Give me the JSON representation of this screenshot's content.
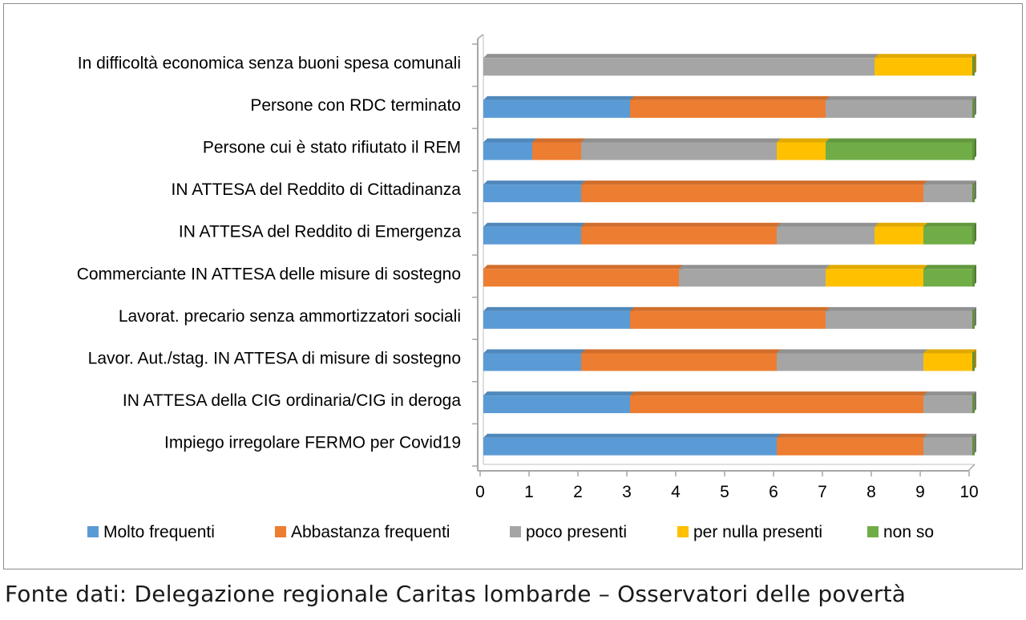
{
  "chart_data": {
    "type": "bar",
    "orientation": "horizontal",
    "stacked": true,
    "categories": [
      "In difficoltà economica senza buoni spesa comunali",
      "Persone con RDC terminato",
      "Persone cui è stato rifiutato il  REM",
      "IN ATTESA del Reddito di Cittadinanza",
      "IN ATTESA del Reddito di Emergenza",
      "Commerciante IN ATTESA delle misure di sostegno",
      "Lavorat. precario senza ammortizzatori sociali",
      "Lavor. Aut./stag. IN ATTESA di misure di sostegno",
      "IN ATTESA della CIG ordinaria/CIG in deroga",
      "Impiego irregolare FERMO per Covid19"
    ],
    "series": [
      {
        "name": "Molto frequenti",
        "color": "#5b9bd5",
        "values": [
          0,
          3,
          1,
          2,
          2,
          0,
          3,
          2,
          3,
          6
        ]
      },
      {
        "name": "Abbastanza frequenti",
        "color": "#ed7d31",
        "values": [
          0,
          4,
          1,
          7,
          4,
          4,
          4,
          4,
          6,
          3
        ]
      },
      {
        "name": "poco presenti",
        "color": "#a5a5a5",
        "values": [
          8,
          3,
          4,
          1,
          2,
          3,
          3,
          3,
          1,
          1
        ]
      },
      {
        "name": "per nulla presenti",
        "color": "#ffc000",
        "values": [
          2,
          0,
          1,
          0,
          1,
          2,
          0,
          1,
          0,
          0
        ]
      },
      {
        "name": "non so",
        "color": "#70ad47",
        "values": [
          0,
          0,
          3,
          0,
          1,
          1,
          0,
          0,
          0,
          0
        ]
      }
    ],
    "xlim": [
      0,
      10
    ],
    "xticks": [
      "0",
      "1",
      "2",
      "3",
      "4",
      "5",
      "6",
      "7",
      "8",
      "9",
      "10"
    ],
    "grid": false,
    "legend_position": "bottom"
  },
  "footer": {
    "source": "Fonte dati: Delegazione regionale Caritas lombarde – Osservatori delle povertà"
  }
}
